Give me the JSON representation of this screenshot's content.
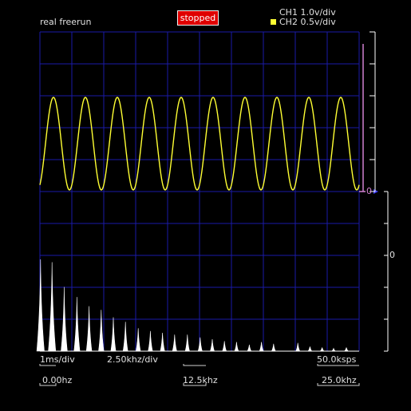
{
  "header": {
    "mode_label": "real  freerun",
    "status_label": "stopped",
    "ch1_label": "CH1 1.0v/div",
    "ch2_label": "CH2 0.5v/div"
  },
  "colors": {
    "grid": "#1a1aa8",
    "ch2_trace": "#ffff33",
    "ch1_marker": "#d080d0",
    "spectrum": "#ffffff",
    "status_bg": "#e00000"
  },
  "axis": {
    "zero_marker_ch1": "0",
    "zero_marker_spectrum": "0",
    "timebase": "1ms/div",
    "freq_per_div": "2.50khz/div",
    "sample_rate": "50.0ksps",
    "freq_start": "0.00hz",
    "freq_mid": "12.5khz",
    "freq_end": "25.0khz"
  },
  "scope": {
    "time_divisions": 10,
    "voltage_divisions": 10,
    "ch2_waveform": {
      "shape": "sine",
      "cycles_visible": 10,
      "min_div": 0.05,
      "max_div": 2.95
    }
  },
  "spectrum_peaks": [
    {
      "khz": 0.05,
      "rel": 1.0
    },
    {
      "khz": 0.95,
      "rel": 0.97
    },
    {
      "khz": 1.9,
      "rel": 0.7
    },
    {
      "khz": 2.9,
      "rel": 0.59
    },
    {
      "khz": 3.85,
      "rel": 0.49
    },
    {
      "khz": 4.8,
      "rel": 0.45
    },
    {
      "khz": 5.75,
      "rel": 0.37
    },
    {
      "khz": 6.7,
      "rel": 0.32
    },
    {
      "khz": 7.7,
      "rel": 0.25
    },
    {
      "khz": 8.65,
      "rel": 0.22
    },
    {
      "khz": 9.6,
      "rel": 0.2
    },
    {
      "khz": 10.55,
      "rel": 0.18
    },
    {
      "khz": 11.55,
      "rel": 0.18
    },
    {
      "khz": 12.55,
      "rel": 0.15
    },
    {
      "khz": 13.5,
      "rel": 0.13
    },
    {
      "khz": 14.45,
      "rel": 0.11
    },
    {
      "khz": 15.4,
      "rel": 0.1
    },
    {
      "khz": 16.4,
      "rel": 0.07
    },
    {
      "khz": 17.35,
      "rel": 0.1
    },
    {
      "khz": 18.3,
      "rel": 0.08
    },
    {
      "khz": 20.2,
      "rel": 0.09
    },
    {
      "khz": 21.15,
      "rel": 0.05
    },
    {
      "khz": 22.1,
      "rel": 0.04
    },
    {
      "khz": 23.0,
      "rel": 0.03
    },
    {
      "khz": 24.0,
      "rel": 0.04
    }
  ]
}
